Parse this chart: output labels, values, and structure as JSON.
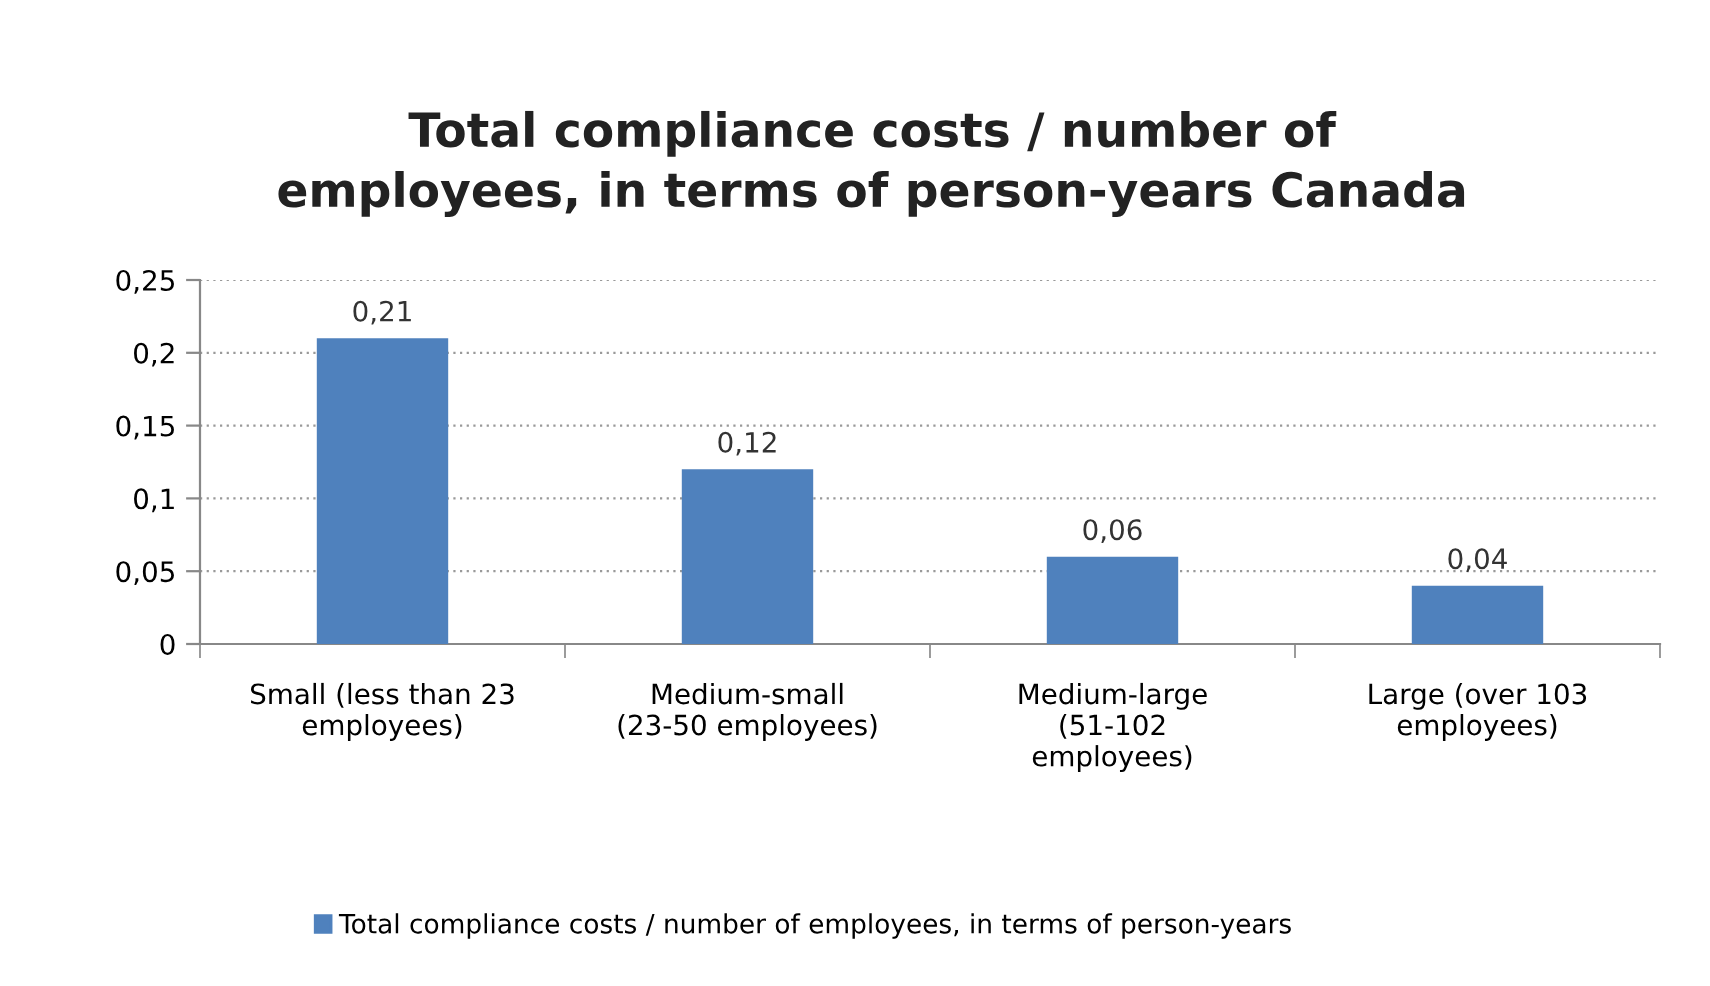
{
  "chart_data": {
    "type": "bar",
    "title": "Total compliance costs / number of\nemployees, in terms of person-years Canada",
    "categories": [
      "Small (less than 23\nemployees)",
      "Medium-small\n(23-50 employees)",
      "Medium-large\n(51-102\nemployees)",
      "Large (over 103\nemployees)"
    ],
    "series": [
      {
        "name": "Total compliance costs / number of employees, in terms of person-years",
        "color": "#4f81bd",
        "values": [
          0.21,
          0.12,
          0.06,
          0.04
        ],
        "value_labels": [
          "0,21",
          "0,12",
          "0,06",
          "0,04"
        ]
      }
    ],
    "ylim": [
      0,
      0.25
    ],
    "yticks": [
      {
        "value": 0,
        "label": "0"
      },
      {
        "value": 0.05,
        "label": "0,05"
      },
      {
        "value": 0.1,
        "label": "0,1"
      },
      {
        "value": 0.15,
        "label": "0,15"
      },
      {
        "value": 0.2,
        "label": "0,2"
      },
      {
        "value": 0.25,
        "label": "0,25"
      }
    ],
    "grid": "y",
    "legend": "bottom"
  }
}
